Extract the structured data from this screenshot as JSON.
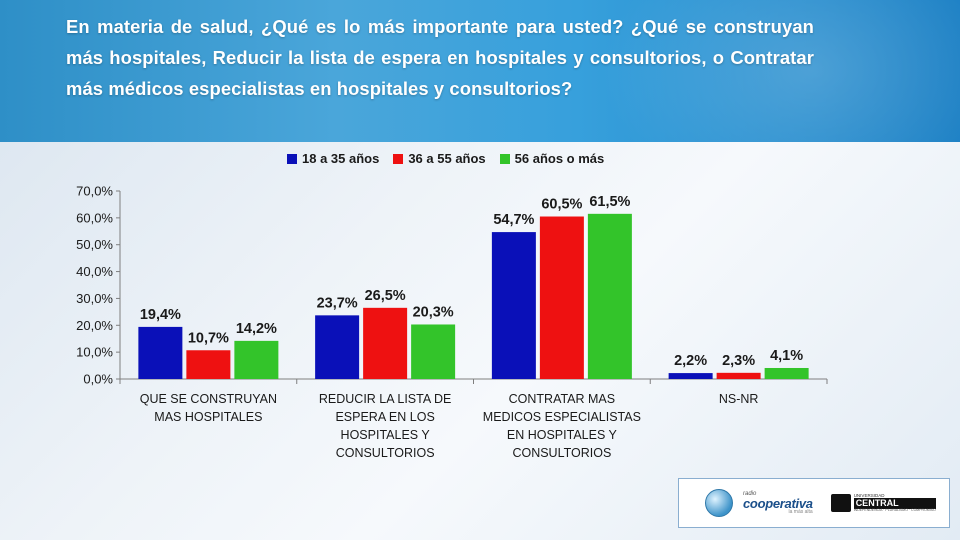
{
  "header": {
    "question": "En materia de salud, ¿Qué es lo más importante para usted? ¿Qué se construyan más hospitales, Reducir la lista de espera en hospitales y consultorios, o Contratar más médicos especialistas en hospitales y consultorios?"
  },
  "chart_data": {
    "type": "bar",
    "categories": [
      "QUE SE  CONSTRUYAN\nMAS HOSPITALES",
      "REDUCIR LA LISTA DE\nESPERA EN LOS\nHOSPITALES Y\nCONSULTORIOS",
      "CONTRATAR MAS\nMEDICOS ESPECIALISTAS\nEN HOSPITALES Y\nCONSULTORIOS",
      "NS-NR"
    ],
    "series": [
      {
        "name": "18 a 35 años",
        "color": "#0a10b8",
        "values": [
          19.4,
          23.7,
          54.7,
          2.2
        ],
        "labels": [
          "19,4%",
          "23,7%",
          "54,7%",
          "2,2%"
        ]
      },
      {
        "name": "36 a 55 años",
        "color": "#ee1111",
        "values": [
          10.7,
          26.5,
          60.5,
          2.3
        ],
        "labels": [
          "10,7%",
          "26,5%",
          "60,5%",
          "2,3%"
        ]
      },
      {
        "name": "56 años o más",
        "color": "#33c42a",
        "values": [
          14.2,
          20.3,
          61.5,
          4.1
        ],
        "labels": [
          "14,2%",
          "20,3%",
          "61,5%",
          "4,1%"
        ]
      }
    ],
    "yticks": [
      "0,0%",
      "10,0%",
      "20,0%",
      "30,0%",
      "40,0%",
      "50,0%",
      "60,0%",
      "70,0%"
    ],
    "ylim": [
      0,
      70
    ],
    "legend_position": "top",
    "grid": false,
    "title": "",
    "xlabel": "",
    "ylabel": ""
  },
  "logos": {
    "radio_small": "radio",
    "radio_name": "cooperativa",
    "radio_tag": "la más alta",
    "uc_univ": "UNIVERSIDAD",
    "uc_name": "CENTRAL",
    "uc_tag": "INDEPENDENCIA · PLURALISMO · COMPROMISO"
  }
}
